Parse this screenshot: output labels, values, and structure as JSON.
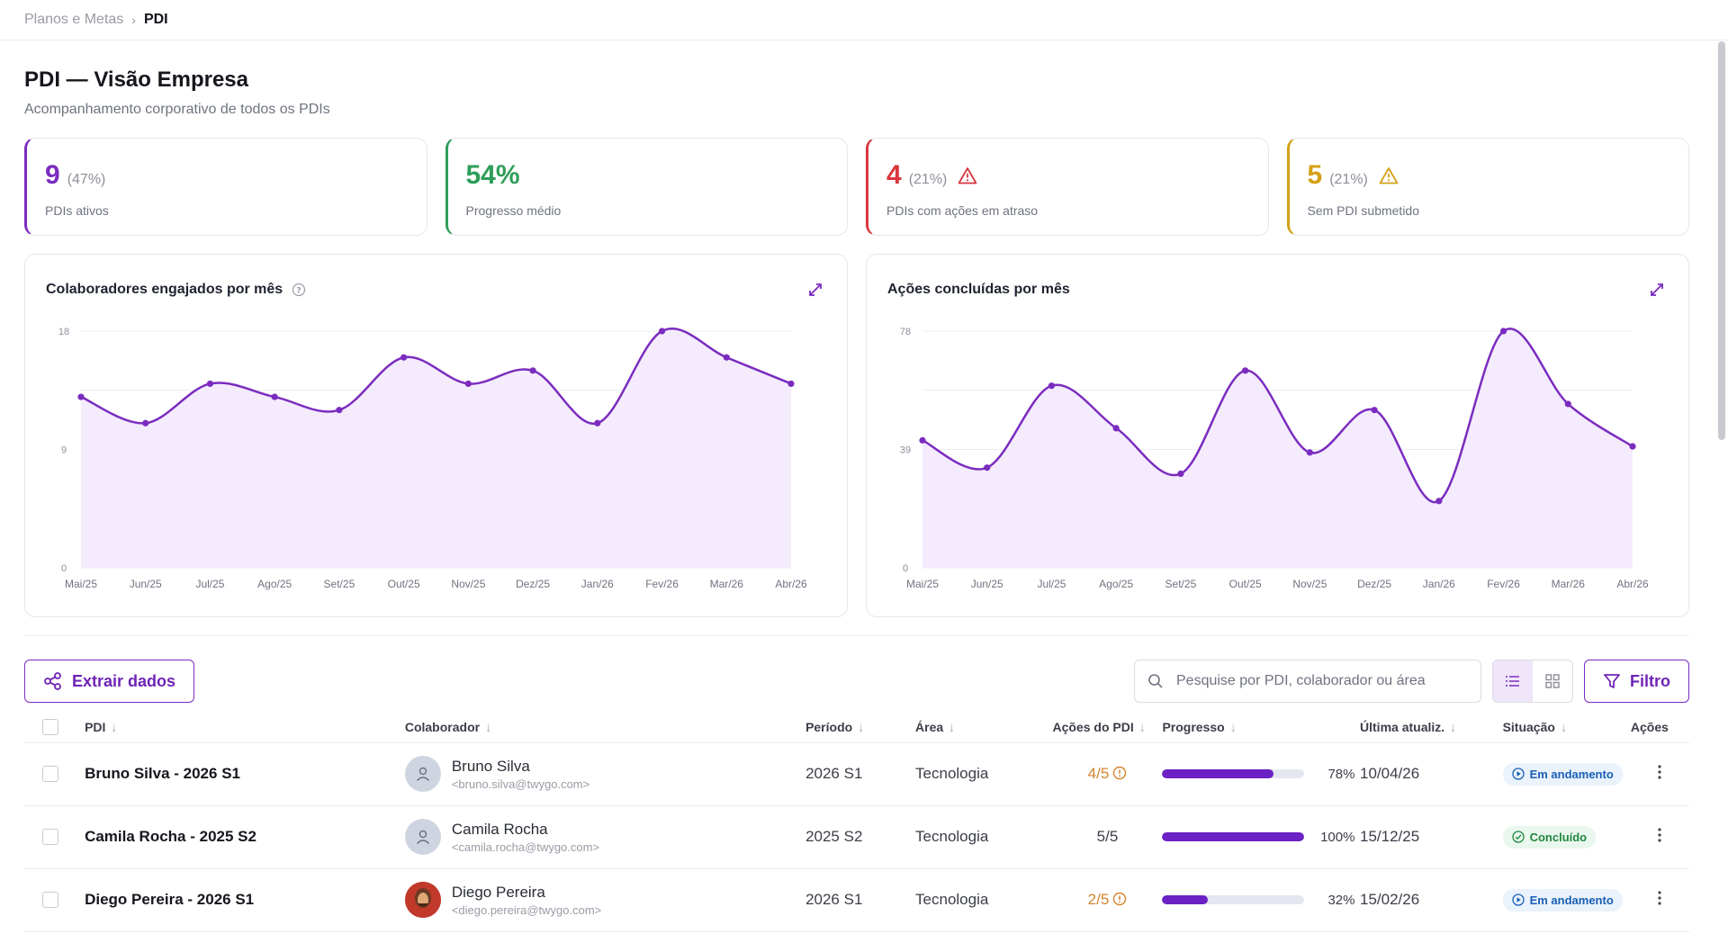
{
  "breadcrumb": {
    "parent": "Planos e Metas",
    "current": "PDI"
  },
  "header": {
    "title": "PDI — Visão Empresa",
    "subtitle": "Acompanhamento corporativo de todos os PDIs"
  },
  "kpis": [
    {
      "value": "9",
      "pct": "(47%)",
      "label": "PDIs ativos",
      "color": "#7b2cbf",
      "warning": false
    },
    {
      "value": "54%",
      "pct": "",
      "label": "Progresso médio",
      "color": "#2f9e5a",
      "warning": false
    },
    {
      "value": "4",
      "pct": "(21%)",
      "label": "PDIs com ações em atraso",
      "color": "#d9363e",
      "warning": true
    },
    {
      "value": "5",
      "pct": "(21%)",
      "label": "Sem PDI submetido",
      "color": "#d4a017",
      "warning": true
    }
  ],
  "chart_data": [
    {
      "type": "area",
      "title": "Colaboradores engajados por mês",
      "categories": [
        "Mai/25",
        "Jun/25",
        "Jul/25",
        "Ago/25",
        "Set/25",
        "Out/25",
        "Nov/25",
        "Dez/25",
        "Jan/26",
        "Fev/26",
        "Mar/26",
        "Abr/26"
      ],
      "values": [
        13,
        11,
        14,
        13,
        12,
        16,
        14,
        15,
        11,
        18,
        16,
        14
      ],
      "yticks": [
        0,
        9,
        18
      ],
      "ylim": [
        0,
        18
      ],
      "grid": true,
      "color": "#7b2cbf"
    },
    {
      "type": "area",
      "title": "Ações concluídas por mês",
      "categories": [
        "Mai/25",
        "Jun/25",
        "Jul/25",
        "Ago/25",
        "Set/25",
        "Out/25",
        "Nov/25",
        "Dez/25",
        "Jan/26",
        "Fev/26",
        "Mar/26",
        "Abr/26"
      ],
      "values": [
        42,
        33,
        60,
        46,
        31,
        65,
        38,
        52,
        22,
        78,
        54,
        40
      ],
      "yticks": [
        0,
        39,
        78
      ],
      "ylim": [
        0,
        78
      ],
      "grid": true,
      "color": "#7b2cbf"
    }
  ],
  "toolbar": {
    "extract_label": "Extrair dados",
    "search_placeholder": "Pesquise por PDI, colaborador ou área",
    "filter_label": "Filtro"
  },
  "table": {
    "headers": {
      "pdi": "PDI",
      "collaborator": "Colaborador",
      "period": "Período",
      "area": "Área",
      "actions_pdi": "Ações do PDI",
      "progress": "Progresso",
      "updated": "Última atualiz.",
      "status": "Situação",
      "actions": "Ações"
    },
    "rows": [
      {
        "pdi": "Bruno Silva - 2026 S1",
        "name": "Bruno Silva",
        "email": "<bruno.silva@twygo.com>",
        "period": "2026 S1",
        "area": "Tecnologia",
        "acts": "4/5",
        "late": true,
        "progress": 78,
        "progress_label": "78%",
        "updated": "10/04/26",
        "status": "Em andamento",
        "status_kind": "run",
        "photo": false
      },
      {
        "pdi": "Camila Rocha - 2025 S2",
        "name": "Camila Rocha",
        "email": "<camila.rocha@twygo.com>",
        "period": "2025 S2",
        "area": "Tecnologia",
        "acts": "5/5",
        "late": false,
        "progress": 100,
        "progress_label": "100%",
        "updated": "15/12/25",
        "status": "Concluído",
        "status_kind": "done",
        "photo": false
      },
      {
        "pdi": "Diego Pereira - 2026 S1",
        "name": "Diego Pereira",
        "email": "<diego.pereira@twygo.com>",
        "period": "2026 S1",
        "area": "Tecnologia",
        "acts": "2/5",
        "late": true,
        "progress": 32,
        "progress_label": "32%",
        "updated": "15/02/26",
        "status": "Em andamento",
        "status_kind": "run",
        "photo": true
      }
    ]
  }
}
